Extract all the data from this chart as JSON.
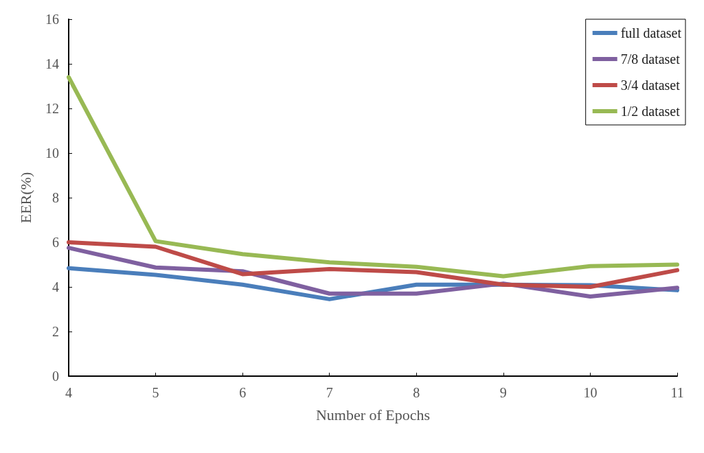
{
  "chart_data": {
    "type": "line",
    "xlabel": "Number of Epochs",
    "ylabel": "EER(%)",
    "x": [
      4,
      5,
      6,
      7,
      8,
      9,
      10,
      11
    ],
    "xlim": [
      4,
      11
    ],
    "xticks": [
      4,
      5,
      6,
      7,
      8,
      9,
      10,
      11
    ],
    "ylim": [
      0,
      16
    ],
    "yticks": [
      0,
      2,
      4,
      6,
      8,
      10,
      12,
      14,
      16
    ],
    "grid": false,
    "legend": "top right",
    "marker": "none",
    "line_style": "solid",
    "series": [
      {
        "name": "full dataset",
        "color": "#4a7ebb",
        "values": [
          4.84,
          4.54,
          4.1,
          3.45,
          4.1,
          4.1,
          4.08,
          3.85
        ]
      },
      {
        "name": "7/8 dataset",
        "color": "#7f60a0",
        "values": [
          5.75,
          4.87,
          4.7,
          3.7,
          3.7,
          4.15,
          3.57,
          3.96
        ]
      },
      {
        "name": "3/4 dataset",
        "color": "#be4b48",
        "values": [
          6.0,
          5.8,
          4.57,
          4.8,
          4.66,
          4.1,
          4.0,
          4.75
        ]
      },
      {
        "name": "1/2 dataset",
        "color": "#98b954",
        "values": [
          13.4,
          6.05,
          5.47,
          5.1,
          4.9,
          4.48,
          4.93,
          5.0
        ]
      }
    ]
  }
}
